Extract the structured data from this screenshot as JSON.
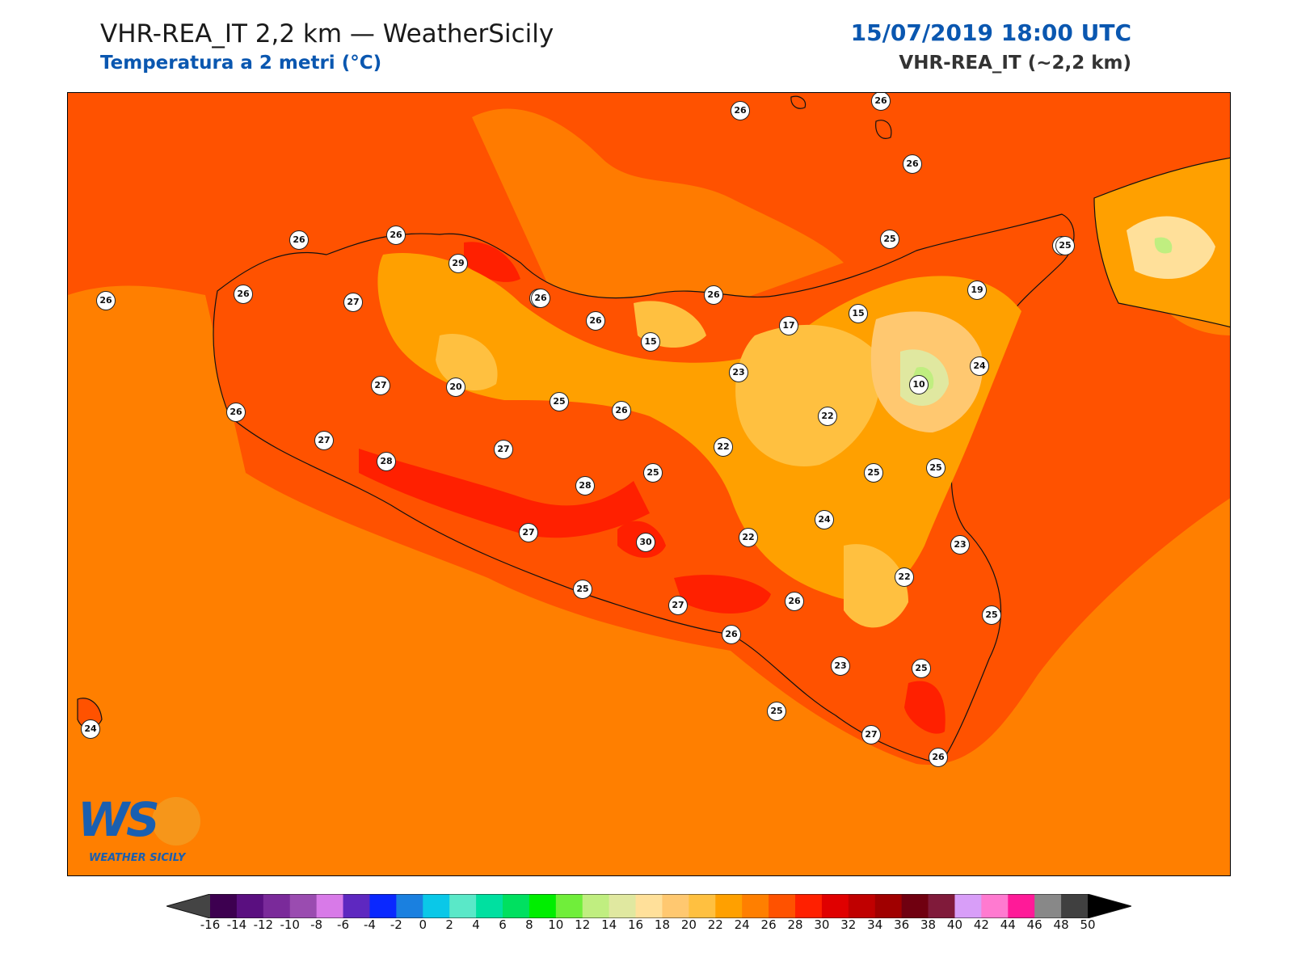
{
  "header": {
    "title": "VHR-REA_IT 2,2 km — WeatherSicily",
    "subtitle": "Temperatura a 2 metri (°C)",
    "date": "15/07/2019 18:00 UTC",
    "model": "VHR-REA_IT (~2,2 km)"
  },
  "logo": {
    "letters": "WS",
    "caption": "WEATHER SICILY"
  },
  "map": {
    "background_color": "#ff5200",
    "sea_color": "#ff7f00",
    "stations": [
      {
        "value": "26"
      },
      {
        "value": "26"
      },
      {
        "value": "26"
      },
      {
        "value": "26"
      },
      {
        "value": "26"
      },
      {
        "value": "25"
      },
      {
        "value": "25"
      },
      {
        "value": "26"
      },
      {
        "value": "26"
      },
      {
        "value": "27"
      },
      {
        "value": "26"
      },
      {
        "value": "29"
      },
      {
        "value": "26"
      },
      {
        "value": "26"
      },
      {
        "value": "15"
      },
      {
        "value": "26"
      },
      {
        "value": "17"
      },
      {
        "value": "15"
      },
      {
        "value": "19"
      },
      {
        "value": "25"
      },
      {
        "value": "24"
      },
      {
        "value": "10"
      },
      {
        "value": "23"
      },
      {
        "value": "27"
      },
      {
        "value": "20"
      },
      {
        "value": "25"
      },
      {
        "value": "26"
      },
      {
        "value": "22"
      },
      {
        "value": "26"
      },
      {
        "value": "27"
      },
      {
        "value": "28"
      },
      {
        "value": "27"
      },
      {
        "value": "22"
      },
      {
        "value": "25"
      },
      {
        "value": "25"
      },
      {
        "value": "25"
      },
      {
        "value": "28"
      },
      {
        "value": "24"
      },
      {
        "value": "23"
      },
      {
        "value": "27"
      },
      {
        "value": "30"
      },
      {
        "value": "22"
      },
      {
        "value": "22"
      },
      {
        "value": "25"
      },
      {
        "value": "27"
      },
      {
        "value": "26"
      },
      {
        "value": "25"
      },
      {
        "value": "26"
      },
      {
        "value": "23"
      },
      {
        "value": "25"
      },
      {
        "value": "24"
      },
      {
        "value": "25"
      },
      {
        "value": "27"
      },
      {
        "value": "26"
      }
    ]
  },
  "colorbar": {
    "ticks": [
      "-16",
      "-14",
      "-12",
      "-10",
      "-8",
      "-6",
      "-4",
      "-2",
      "0",
      "2",
      "4",
      "6",
      "8",
      "10",
      "12",
      "14",
      "16",
      "18",
      "20",
      "22",
      "24",
      "26",
      "28",
      "30",
      "32",
      "34",
      "36",
      "38",
      "40",
      "42",
      "44",
      "46",
      "48",
      "50"
    ],
    "under_color": "#444444",
    "over_color": "#000000",
    "colors": [
      "#3d0050",
      "#5a0f80",
      "#7a2a9a",
      "#9a4cb0",
      "#d87ae8",
      "#5e28c0",
      "#0a28ff",
      "#1a80e0",
      "#0ac8e8",
      "#5ae8c8",
      "#00e0a0",
      "#00e060",
      "#00ee00",
      "#70ee3a",
      "#c0ee80",
      "#e0e8a0",
      "#ffe09a",
      "#ffc870",
      "#ffc040",
      "#ffa000",
      "#ff7f00",
      "#ff5200",
      "#ff2000",
      "#e00000",
      "#c00000",
      "#a00000",
      "#700010",
      "#801a3a",
      "#d89ef8",
      "#ff7ad0",
      "#ff1a98",
      "#888888",
      "#404040"
    ]
  }
}
